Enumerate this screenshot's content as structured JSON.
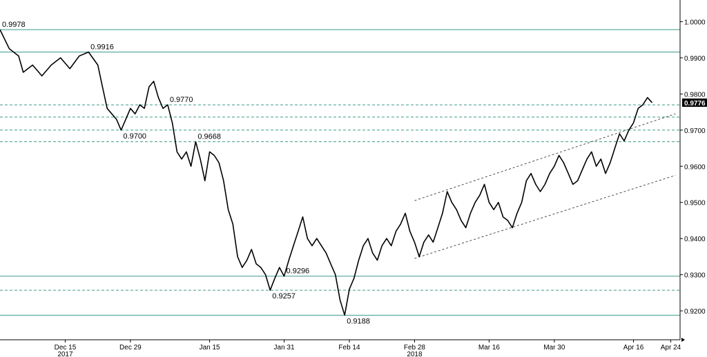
{
  "chart_data": {
    "type": "line",
    "title": "",
    "xlabel": "",
    "ylabel": "",
    "ylim": [
      0.912,
      1.006
    ],
    "y_ticks": [
      "0.9200",
      "0.9300",
      "0.9400",
      "0.9500",
      "0.9600",
      "0.9700",
      "0.9800",
      "0.9900",
      "1.0000"
    ],
    "x_ticks": [
      {
        "label": "Dec 15",
        "day": 14
      },
      {
        "label": "Dec 29",
        "day": 28
      },
      {
        "label": "Jan 15",
        "day": 45
      },
      {
        "label": "Jan 31",
        "day": 61
      },
      {
        "label": "Feb 14",
        "day": 75
      },
      {
        "label": "Feb 28",
        "day": 89
      },
      {
        "label": "Mar 16",
        "day": 105
      },
      {
        "label": "Mar 30",
        "day": 119
      },
      {
        "label": "Apr 16",
        "day": 136
      },
      {
        "label": "Apr 24",
        "day": 144
      }
    ],
    "year_labels": [
      {
        "label": "2017",
        "day": 14
      },
      {
        "label": "2018",
        "day": 89
      }
    ],
    "series": [
      {
        "color": "#000000",
        "points": [
          [
            0,
            0.9978
          ],
          [
            2,
            0.9925
          ],
          [
            4,
            0.9905
          ],
          [
            5,
            0.986
          ],
          [
            7,
            0.988
          ],
          [
            9,
            0.985
          ],
          [
            11,
            0.988
          ],
          [
            13,
            0.99
          ],
          [
            15,
            0.987
          ],
          [
            17,
            0.9905
          ],
          [
            19,
            0.9916
          ],
          [
            21,
            0.988
          ],
          [
            22,
            0.982
          ],
          [
            23,
            0.976
          ],
          [
            25,
            0.973
          ],
          [
            26,
            0.97
          ],
          [
            27,
            0.973
          ],
          [
            28,
            0.976
          ],
          [
            29,
            0.9745
          ],
          [
            30,
            0.977
          ],
          [
            31,
            0.976
          ],
          [
            32,
            0.982
          ],
          [
            33,
            0.9835
          ],
          [
            34,
            0.979
          ],
          [
            35,
            0.976
          ],
          [
            36,
            0.977
          ],
          [
            37,
            0.972
          ],
          [
            38,
            0.964
          ],
          [
            39,
            0.962
          ],
          [
            40,
            0.964
          ],
          [
            41,
            0.96
          ],
          [
            42,
            0.9668
          ],
          [
            43,
            0.962
          ],
          [
            44,
            0.956
          ],
          [
            45,
            0.964
          ],
          [
            46,
            0.963
          ],
          [
            47,
            0.961
          ],
          [
            48,
            0.956
          ],
          [
            49,
            0.948
          ],
          [
            50,
            0.944
          ],
          [
            51,
            0.935
          ],
          [
            52,
            0.932
          ],
          [
            53,
            0.934
          ],
          [
            54,
            0.937
          ],
          [
            55,
            0.933
          ],
          [
            56,
            0.932
          ],
          [
            57,
            0.93
          ],
          [
            58,
            0.9257
          ],
          [
            59,
            0.929
          ],
          [
            60,
            0.932
          ],
          [
            61,
            0.9296
          ],
          [
            62,
            0.934
          ],
          [
            63,
            0.938
          ],
          [
            64,
            0.942
          ],
          [
            65,
            0.946
          ],
          [
            66,
            0.94
          ],
          [
            67,
            0.938
          ],
          [
            68,
            0.94
          ],
          [
            69,
            0.938
          ],
          [
            70,
            0.936
          ],
          [
            71,
            0.933
          ],
          [
            72,
            0.93
          ],
          [
            73,
            0.923
          ],
          [
            74,
            0.9188
          ],
          [
            75,
            0.926
          ],
          [
            76,
            0.929
          ],
          [
            77,
            0.934
          ],
          [
            78,
            0.938
          ],
          [
            79,
            0.94
          ],
          [
            80,
            0.936
          ],
          [
            81,
            0.934
          ],
          [
            82,
            0.938
          ],
          [
            83,
            0.94
          ],
          [
            84,
            0.938
          ],
          [
            85,
            0.942
          ],
          [
            86,
            0.944
          ],
          [
            87,
            0.947
          ],
          [
            88,
            0.942
          ],
          [
            89,
            0.939
          ],
          [
            90,
            0.935
          ],
          [
            91,
            0.939
          ],
          [
            92,
            0.941
          ],
          [
            93,
            0.939
          ],
          [
            94,
            0.943
          ],
          [
            95,
            0.947
          ],
          [
            96,
            0.953
          ],
          [
            97,
            0.95
          ],
          [
            98,
            0.948
          ],
          [
            99,
            0.945
          ],
          [
            100,
            0.943
          ],
          [
            101,
            0.947
          ],
          [
            102,
            0.95
          ],
          [
            103,
            0.952
          ],
          [
            104,
            0.955
          ],
          [
            105,
            0.95
          ],
          [
            106,
            0.948
          ],
          [
            107,
            0.95
          ],
          [
            108,
            0.946
          ],
          [
            109,
            0.945
          ],
          [
            110,
            0.943
          ],
          [
            111,
            0.947
          ],
          [
            112,
            0.95
          ],
          [
            113,
            0.956
          ],
          [
            114,
            0.958
          ],
          [
            115,
            0.955
          ],
          [
            116,
            0.953
          ],
          [
            117,
            0.955
          ],
          [
            118,
            0.958
          ],
          [
            119,
            0.96
          ],
          [
            120,
            0.963
          ],
          [
            121,
            0.961
          ],
          [
            122,
            0.958
          ],
          [
            123,
            0.955
          ],
          [
            124,
            0.956
          ],
          [
            125,
            0.959
          ],
          [
            126,
            0.962
          ],
          [
            127,
            0.964
          ],
          [
            128,
            0.96
          ],
          [
            129,
            0.962
          ],
          [
            130,
            0.958
          ],
          [
            131,
            0.961
          ],
          [
            132,
            0.965
          ],
          [
            133,
            0.969
          ],
          [
            134,
            0.967
          ],
          [
            135,
            0.97
          ],
          [
            136,
            0.972
          ],
          [
            137,
            0.976
          ],
          [
            138,
            0.977
          ],
          [
            139,
            0.979
          ],
          [
            140,
            0.9776
          ]
        ]
      }
    ],
    "solid_levels": [
      0.9978,
      0.9916,
      0.9296,
      0.9188
    ],
    "dashed_levels": [
      0.977,
      0.9736,
      0.97,
      0.9668,
      0.9257
    ],
    "channel_lines": [
      {
        "from": [
          89,
          0.9505
        ],
        "to": [
          145,
          0.9745
        ]
      },
      {
        "from": [
          89,
          0.9345
        ],
        "to": [
          145,
          0.9575
        ]
      }
    ],
    "annotations": [
      {
        "text": "0.9978",
        "day": 0,
        "value": 0.9978
      },
      {
        "text": "0.9916",
        "day": 19,
        "value": 0.9916
      },
      {
        "text": "0.9770",
        "day": 36,
        "value": 0.977
      },
      {
        "text": "0.9700",
        "day": 26,
        "value": 0.97
      },
      {
        "text": "0.9668",
        "day": 42,
        "value": 0.9668
      },
      {
        "text": "0.9296",
        "day": 61,
        "value": 0.9296
      },
      {
        "text": "0.9257",
        "day": 58,
        "value": 0.9257
      },
      {
        "text": "0.9188",
        "day": 74,
        "value": 0.9188
      }
    ],
    "last_value": {
      "text": "0.9776",
      "value": 0.9776
    },
    "colors": {
      "line": "#000000",
      "level": "#3a9a8a",
      "label_bg": "#000000"
    },
    "grid": false,
    "legend": "none"
  }
}
